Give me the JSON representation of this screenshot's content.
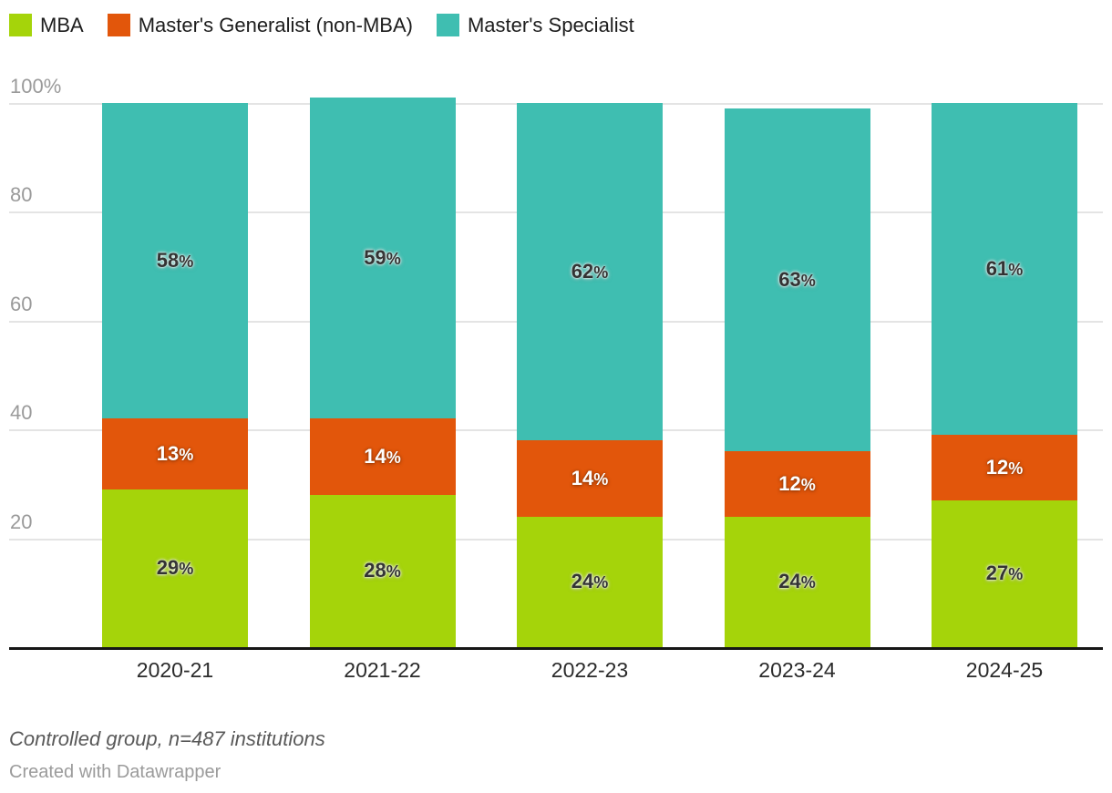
{
  "chart_data": {
    "type": "bar",
    "stacked": true,
    "orientation": "vertical",
    "categories": [
      "2020-21",
      "2021-22",
      "2022-23",
      "2023-24",
      "2024-25"
    ],
    "series": [
      {
        "name": "MBA",
        "color": "#a5d40a",
        "label_color": "#333333",
        "label_halo": "light",
        "values": [
          29,
          28,
          24,
          24,
          27
        ]
      },
      {
        "name": "Master's Generalist (non-MBA)",
        "color": "#e2560b",
        "label_color": "#ffffff",
        "label_halo": "dark",
        "values": [
          13,
          14,
          14,
          12,
          12
        ]
      },
      {
        "name": "Master's Specialist",
        "color": "#3fbeb1",
        "label_color": "#333333",
        "label_halo": "light",
        "values": [
          58,
          59,
          62,
          63,
          61
        ]
      }
    ],
    "value_suffix": "%",
    "yticks": [
      {
        "value": 20,
        "label": "20"
      },
      {
        "value": 40,
        "label": "40"
      },
      {
        "value": 60,
        "label": "60"
      },
      {
        "value": 80,
        "label": "80"
      },
      {
        "value": 100,
        "label": "100%"
      }
    ],
    "ylim": [
      0,
      100
    ],
    "grid": true,
    "gridline_color": "#e4e4e4",
    "axis_line_color": "#161616",
    "legend_position": "top-left"
  },
  "footer": {
    "note": "Controlled group, n=487 institutions",
    "credit": "Created with Datawrapper"
  }
}
